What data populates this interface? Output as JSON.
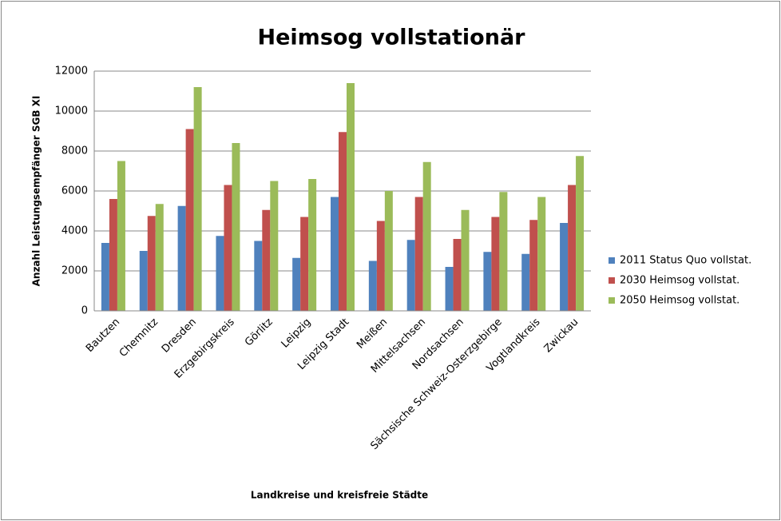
{
  "chart_data": {
    "type": "bar",
    "title": "Heimsog vollstationär",
    "x_label": "Landkreise und kreisfreie Städte",
    "y_label": "Anzahl Leistungsempfänger SGB XI",
    "categories": [
      "Bautzen",
      "Chemnitz",
      "Dresden",
      "Erzgebirgskreis",
      "Görlitz",
      "Leipzig",
      "Leipzig Stadt",
      "Meißen",
      "Mittelsachsen",
      "Nordsachsen",
      "Sächsische Schweiz-Osterzgebirge",
      "Vogtlandkreis",
      "Zwickau"
    ],
    "series": [
      {
        "name": "2011 Status Quo vollstat.",
        "color": "#4f81bd",
        "values": [
          3400,
          3000,
          5250,
          3750,
          3500,
          2650,
          5700,
          2500,
          3550,
          2200,
          2950,
          2850,
          4400
        ]
      },
      {
        "name": "2030 Heimsog vollstat.",
        "color": "#c0504d",
        "values": [
          5600,
          4750,
          9100,
          6300,
          5050,
          4700,
          8950,
          4500,
          5700,
          3600,
          4700,
          4550,
          6300
        ]
      },
      {
        "name": "2050 Heimsog vollstat.",
        "color": "#9bbb59",
        "values": [
          7500,
          5350,
          11200,
          8400,
          6500,
          6600,
          11400,
          6000,
          7450,
          5050,
          5950,
          5700,
          7750
        ]
      }
    ],
    "ylim": [
      0,
      12000
    ],
    "yticks": [
      0,
      2000,
      4000,
      6000,
      8000,
      10000,
      12000
    ],
    "grid": true,
    "legend": "right"
  }
}
